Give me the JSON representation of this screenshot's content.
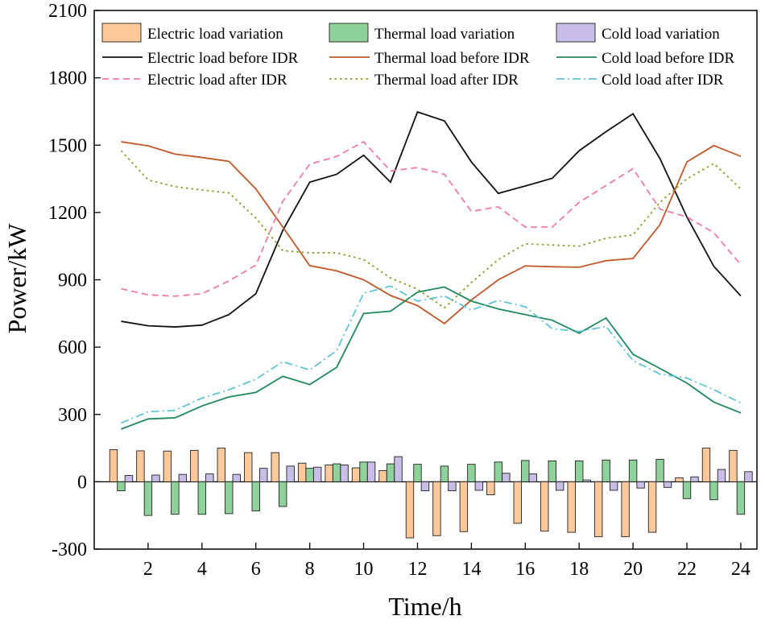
{
  "chart_data": {
    "type": "bar+line",
    "title": "",
    "xlabel": "Time/h",
    "ylabel": "Power/kW",
    "xlim": [
      0,
      24.6
    ],
    "ylim": [
      -300,
      2100
    ],
    "xticks": [
      2,
      4,
      6,
      8,
      10,
      12,
      14,
      16,
      18,
      20,
      22,
      24
    ],
    "yticks": [
      -300,
      0,
      300,
      600,
      900,
      1200,
      1500,
      1800,
      2100
    ],
    "x": [
      1,
      2,
      3,
      4,
      5,
      6,
      7,
      8,
      9,
      10,
      11,
      12,
      13,
      14,
      15,
      16,
      17,
      18,
      19,
      20,
      21,
      22,
      23,
      24
    ],
    "bars": [
      {
        "name": "Electric load variation",
        "color": "#fdc99b",
        "values": [
          143,
          138,
          137,
          140,
          150,
          130,
          130,
          83,
          75,
          62,
          50,
          -250,
          -240,
          -222,
          -58,
          -185,
          -220,
          -225,
          -245,
          -245,
          -225,
          18,
          150,
          140
        ]
      },
      {
        "name": "Thermal load variation",
        "color": "#8fd19a",
        "values": [
          -40,
          -150,
          -145,
          -145,
          -142,
          -130,
          -110,
          60,
          80,
          88,
          80,
          78,
          70,
          78,
          88,
          95,
          93,
          93,
          97,
          97,
          100,
          -75,
          -80,
          -145
        ]
      },
      {
        "name": "Cold load variation",
        "color": "#c8bde6",
        "values": [
          28,
          30,
          33,
          35,
          33,
          60,
          70,
          65,
          75,
          88,
          112,
          -40,
          -40,
          -38,
          38,
          35,
          -38,
          8,
          -38,
          -28,
          -25,
          22,
          55,
          45
        ]
      }
    ],
    "series": [
      {
        "name": "Electric load before IDR",
        "color": "#111111",
        "dash": "solid",
        "values": [
          715,
          695,
          690,
          698,
          745,
          838,
          1120,
          1335,
          1370,
          1455,
          1335,
          1648,
          1608,
          1425,
          1285,
          1318,
          1352,
          1475,
          1560,
          1640,
          1440,
          1180,
          960,
          828
        ]
      },
      {
        "name": "Thermal load before IDR",
        "color": "#c0582a",
        "dash": "solid",
        "values": [
          1515,
          1497,
          1460,
          1445,
          1428,
          1305,
          1135,
          963,
          940,
          900,
          830,
          785,
          705,
          810,
          900,
          962,
          958,
          956,
          985,
          995,
          1145,
          1425,
          1498,
          1450
        ]
      },
      {
        "name": "Cold load before IDR",
        "color": "#1f8a5c",
        "dash": "solid",
        "values": [
          235,
          280,
          285,
          338,
          378,
          398,
          470,
          433,
          510,
          750,
          760,
          845,
          868,
          805,
          770,
          745,
          720,
          662,
          730,
          568,
          505,
          440,
          355,
          307
        ]
      },
      {
        "name": "Electric load after IDR",
        "color": "#f07aa8",
        "dash": "dash",
        "values": [
          860,
          833,
          827,
          838,
          895,
          965,
          1250,
          1415,
          1450,
          1515,
          1385,
          1400,
          1370,
          1205,
          1225,
          1135,
          1135,
          1245,
          1320,
          1395,
          1215,
          1180,
          1110,
          967
        ]
      },
      {
        "name": "Thermal load after IDR",
        "color": "#8f9a2c",
        "dash": "dot",
        "values": [
          1475,
          1345,
          1315,
          1300,
          1287,
          1175,
          1030,
          1020,
          1020,
          990,
          908,
          858,
          775,
          888,
          990,
          1060,
          1055,
          1050,
          1085,
          1100,
          1245,
          1350,
          1418,
          1305
        ]
      },
      {
        "name": "Cold load after IDR",
        "color": "#62c3d8",
        "dash": "dashdot",
        "values": [
          262,
          312,
          318,
          373,
          410,
          457,
          535,
          498,
          585,
          840,
          872,
          805,
          828,
          765,
          808,
          780,
          682,
          670,
          692,
          540,
          480,
          462,
          410,
          352
        ]
      }
    ],
    "legend": {
      "placement": "top",
      "columns": 3,
      "entries": [
        {
          "label": "Electric load variation",
          "kind": "bar",
          "ref": 0
        },
        {
          "label": "Thermal load variation",
          "kind": "bar",
          "ref": 1
        },
        {
          "label": "Cold load variation",
          "kind": "bar",
          "ref": 2
        },
        {
          "label": "Electric load before IDR",
          "kind": "line",
          "ref": 0
        },
        {
          "label": "Thermal load before IDR",
          "kind": "line",
          "ref": 1
        },
        {
          "label": "Cold load before IDR",
          "kind": "line",
          "ref": 2
        },
        {
          "label": "Electric load after IDR",
          "kind": "line",
          "ref": 3
        },
        {
          "label": "Thermal load after IDR",
          "kind": "line",
          "ref": 4
        },
        {
          "label": "Cold load after IDR",
          "kind": "line",
          "ref": 5
        }
      ]
    }
  }
}
